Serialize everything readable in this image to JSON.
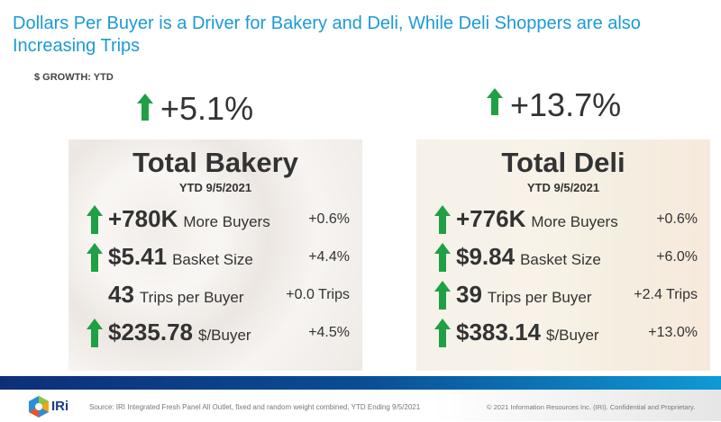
{
  "title": "Dollars Per Buyer is a Driver for Bakery and Deli, While Deli Shoppers are also Increasing Trips",
  "subtitle": "$ GROWTH: YTD",
  "colors": {
    "title": "#1c9ad6",
    "arrow": "#1fa044",
    "bar_start": "#0d2f78",
    "bar_end": "#0f9ad6"
  },
  "panels": [
    {
      "growth": "+5.1%",
      "growth_icon": "arrow-up-icon",
      "title": "Total Bakery",
      "date": "YTD 9/5/2021",
      "rows": [
        {
          "value": "+780K",
          "label": "More Buyers",
          "change": "+0.6%",
          "arrow": true
        },
        {
          "value": "$5.41",
          "label": "Basket Size",
          "change": "+4.4%",
          "arrow": true
        },
        {
          "value": "43",
          "label": "Trips per Buyer",
          "change": "+0.0 Trips",
          "arrow": false
        },
        {
          "value": "$235.78",
          "label": "$/Buyer",
          "change": "+4.5%",
          "arrow": true
        }
      ]
    },
    {
      "growth": "+13.7%",
      "growth_icon": "arrow-up-icon",
      "title": "Total Deli",
      "date": "YTD 9/5/2021",
      "rows": [
        {
          "value": "+776K",
          "label": "More Buyers",
          "change": "+0.6%",
          "arrow": true
        },
        {
          "value": "$9.84",
          "label": "Basket Size",
          "change": "+6.0%",
          "arrow": true
        },
        {
          "value": "39",
          "label": "Trips per Buyer",
          "change": "+2.4 Trips",
          "arrow": true
        },
        {
          "value": "$383.14",
          "label": "$/Buyer",
          "change": "+13.0%",
          "arrow": true
        }
      ]
    }
  ],
  "footer": {
    "brand": "IRi",
    "source": "Source: IRI  Integrated Fresh Panel  All Outlet, fixed and random weight combined, YTD Ending 9/5/2021",
    "copyright": "© 2021 Information Resources Inc. (IRI). Confidential and Proprietary."
  }
}
